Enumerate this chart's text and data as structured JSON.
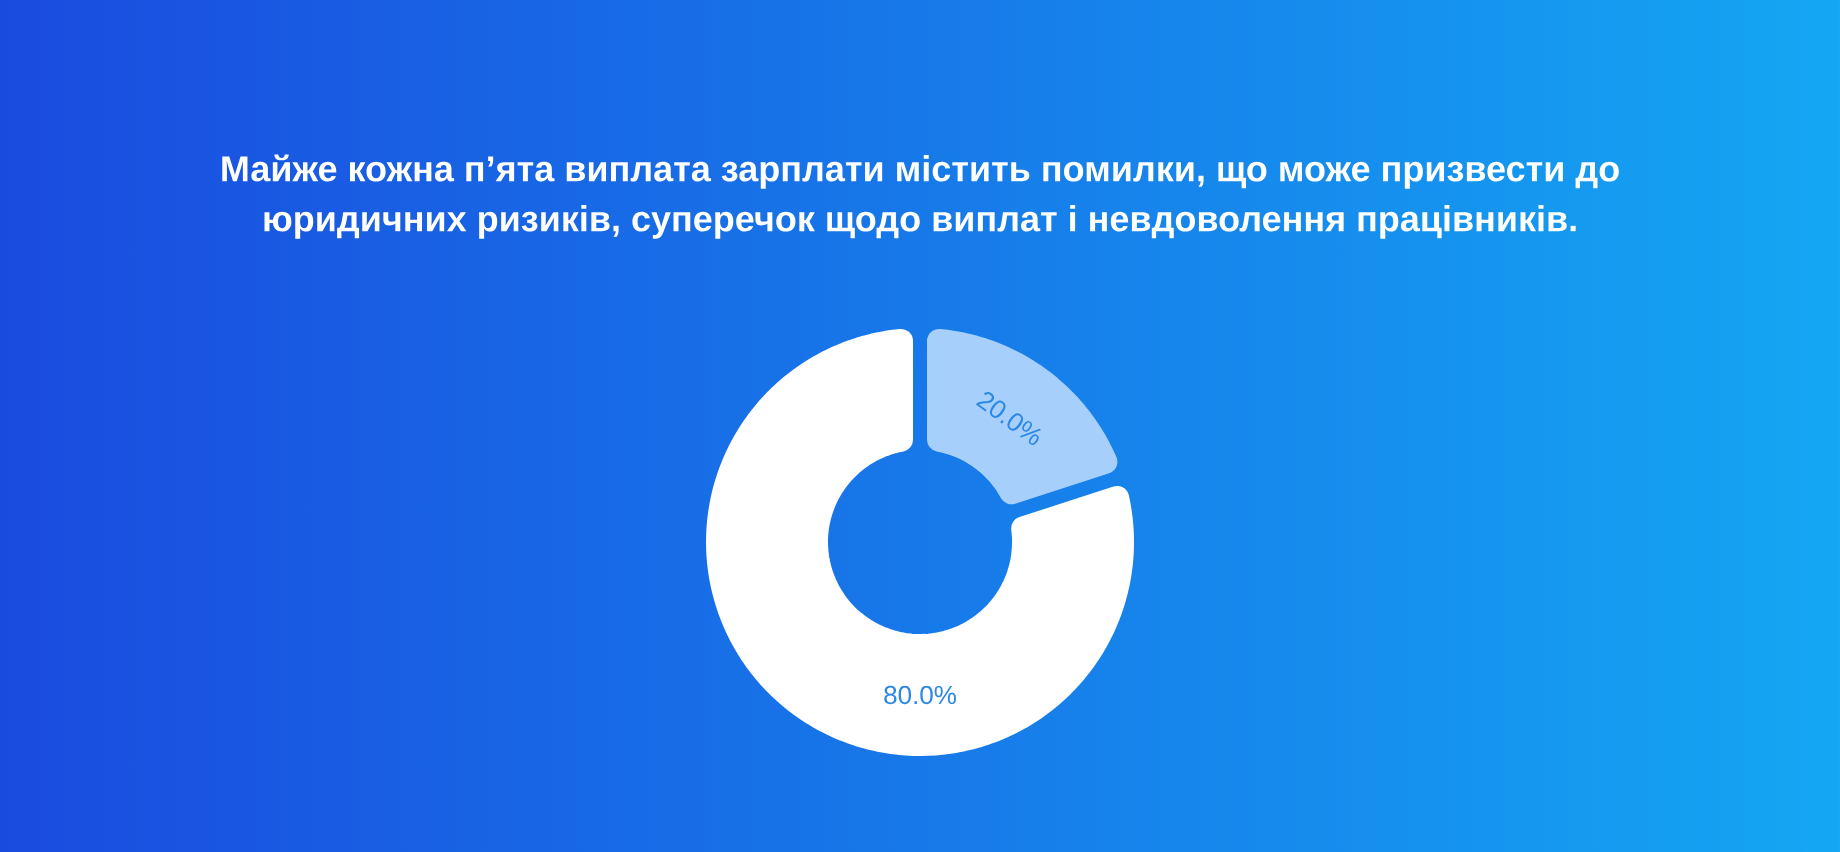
{
  "chart_data": {
    "type": "donut",
    "title": "Майже кожна п’ята виплата зарплати містить помилки, що може призвести до юридичних ризиків, суперечок щодо виплат і невдоволення працівників.",
    "categories": [
      null,
      null
    ],
    "values": [
      20,
      80
    ],
    "colors": [
      "#a6d0fb",
      "#ffffff"
    ],
    "value_labels": [
      "20.0%",
      "80.0%"
    ]
  }
}
